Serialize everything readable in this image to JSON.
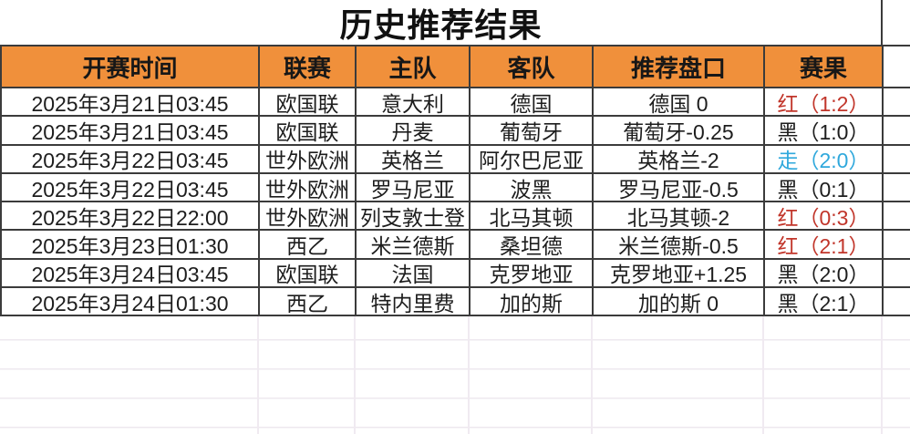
{
  "title": "历史推荐结果",
  "table": {
    "headers": {
      "time": "开赛时间",
      "league": "联赛",
      "home": "主队",
      "away": "客队",
      "handicap": "推荐盘口",
      "result": "赛果"
    },
    "rows": [
      {
        "time": "2025年3月21日03:45",
        "league": "欧国联",
        "home": "意大利",
        "away": "德国",
        "handicap": "德国 0",
        "result": "红（1:2）",
        "result_color": "red"
      },
      {
        "time": "2025年3月21日03:45",
        "league": "欧国联",
        "home": "丹麦",
        "away": "葡萄牙",
        "handicap": "葡萄牙-0.25",
        "result": "黑（1:0）",
        "result_color": "black"
      },
      {
        "time": "2025年3月22日03:45",
        "league": "世外欧洲",
        "home": "英格兰",
        "away": "阿尔巴尼亚",
        "handicap": "英格兰-2",
        "result": "走（2:0）",
        "result_color": "blue"
      },
      {
        "time": "2025年3月22日03:45",
        "league": "世外欧洲",
        "home": "罗马尼亚",
        "away": "波黑",
        "handicap": "罗马尼亚-0.5",
        "result": "黑（0:1）",
        "result_color": "black"
      },
      {
        "time": "2025年3月22日22:00",
        "league": "世外欧洲",
        "home": "列支敦士登",
        "away": "北马其顿",
        "handicap": "北马其顿-2",
        "result": "红（0:3）",
        "result_color": "red"
      },
      {
        "time": "2025年3月23日01:30",
        "league": "西乙",
        "home": "米兰德斯",
        "away": "桑坦德",
        "handicap": "米兰德斯-0.5",
        "result": "红（2:1）",
        "result_color": "red"
      },
      {
        "time": "2025年3月24日03:45",
        "league": "欧国联",
        "home": "法国",
        "away": "克罗地亚",
        "handicap": "克罗地亚+1.25",
        "result": "黑（2:0）",
        "result_color": "black"
      },
      {
        "time": "2025年3月24日01:30",
        "league": "西乙",
        "home": "特内里费",
        "away": "加的斯",
        "handicap": "加的斯 0",
        "result": "黑（2:1）",
        "result_color": "black"
      }
    ]
  },
  "colors": {
    "header_bg": "#f0903b",
    "border": "#3b3b3b",
    "red": "#c1352a",
    "blue": "#2fa8dc",
    "black": "#1d1d1d"
  }
}
